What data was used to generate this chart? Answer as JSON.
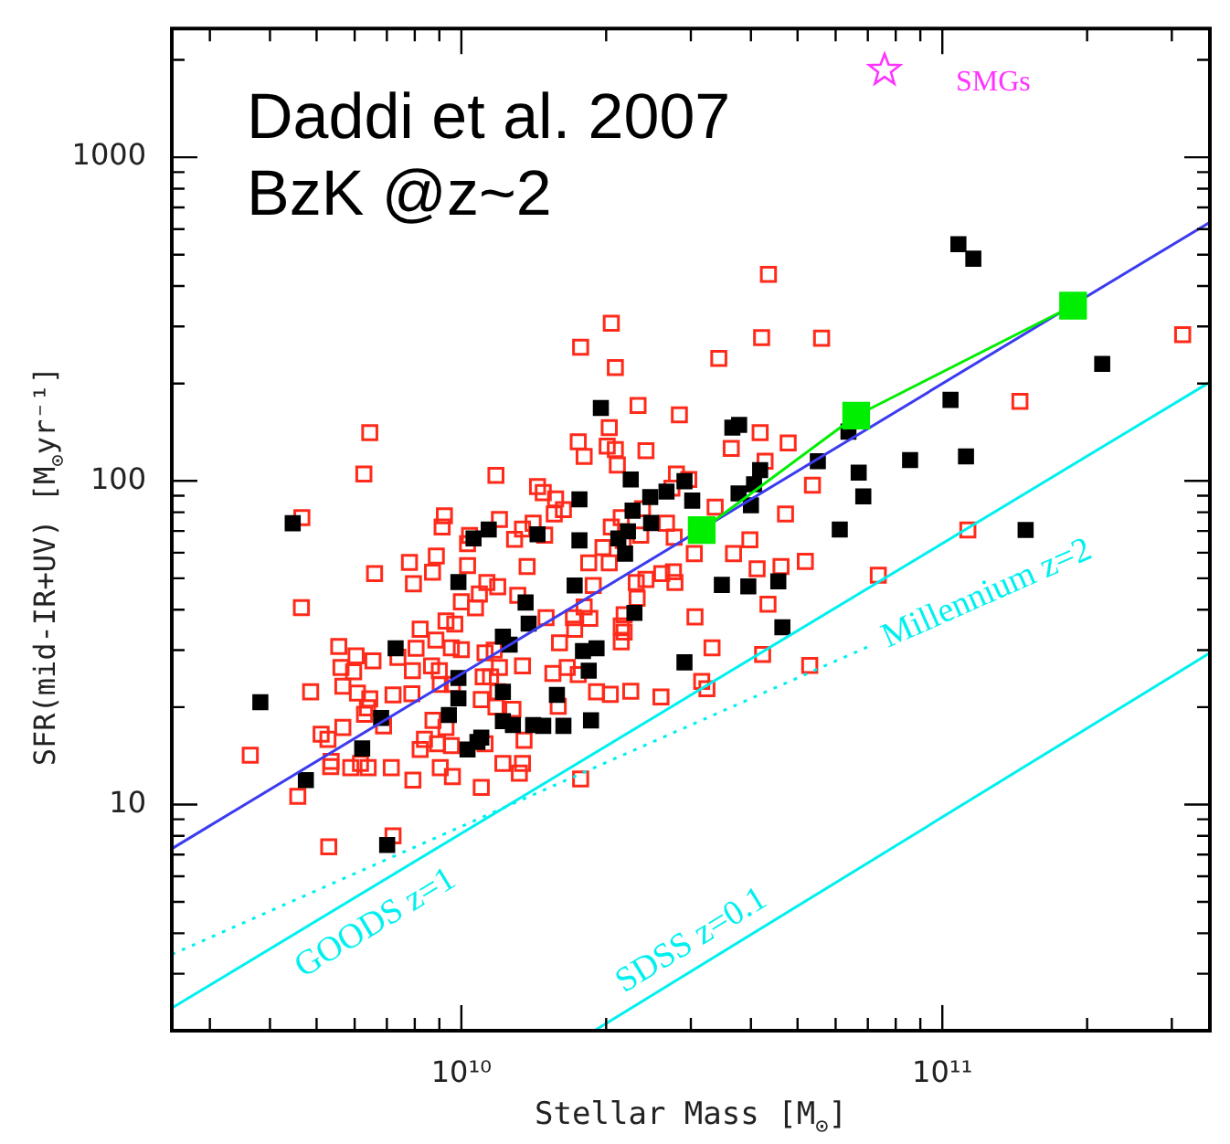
{
  "chart_data": {
    "type": "scatter",
    "xlabel": "Stellar Mass [M$_{⊙}$]",
    "ylabel": "SFR(mid-IR+UV) [M$_{⊙}$yr⁻¹]",
    "annotations": [
      "Daddi et al. 2007",
      "BzK @z~2",
      "SMGs"
    ],
    "log": "xy",
    "xlim": [
      2500000000.0,
      360000000000.0
    ],
    "ylim": [
      2,
      2500
    ],
    "xticks": [
      {
        "value": 3000000000.0,
        "label": null
      },
      {
        "value": 4000000000.0,
        "label": null
      },
      {
        "value": 5000000000.0,
        "label": null
      },
      {
        "value": 6000000000.0,
        "label": null
      },
      {
        "value": 7000000000.0,
        "label": null
      },
      {
        "value": 8000000000.0,
        "label": null
      },
      {
        "value": 9000000000.0,
        "label": null
      },
      {
        "value": 10000000000.0,
        "label": "10¹⁰"
      },
      {
        "value": 20000000000.0,
        "label": null
      },
      {
        "value": 30000000000.0,
        "label": null
      },
      {
        "value": 40000000000.0,
        "label": null
      },
      {
        "value": 50000000000.0,
        "label": null
      },
      {
        "value": 60000000000.0,
        "label": null
      },
      {
        "value": 70000000000.0,
        "label": null
      },
      {
        "value": 80000000000.0,
        "label": null
      },
      {
        "value": 90000000000.0,
        "label": null
      },
      {
        "value": 100000000000.0,
        "label": "10¹¹"
      },
      {
        "value": 200000000000.0,
        "label": null
      },
      {
        "value": 300000000000.0,
        "label": null
      }
    ],
    "yticks": [
      {
        "value": 3,
        "label": null
      },
      {
        "value": 4,
        "label": null
      },
      {
        "value": 5,
        "label": null
      },
      {
        "value": 6,
        "label": null
      },
      {
        "value": 7,
        "label": null
      },
      {
        "value": 8,
        "label": null
      },
      {
        "value": 9,
        "label": null
      },
      10,
      {
        "value": 20,
        "label": null
      },
      {
        "value": 30,
        "label": null
      },
      {
        "value": 40,
        "label": null
      },
      {
        "value": 50,
        "label": null
      },
      {
        "value": 60,
        "label": null
      },
      {
        "value": 70,
        "label": null
      },
      {
        "value": 80,
        "label": null
      },
      {
        "value": 90,
        "label": null
      },
      100,
      {
        "value": 200,
        "label": null
      },
      {
        "value": 300,
        "label": null
      },
      {
        "value": 400,
        "label": null
      },
      {
        "value": 500,
        "label": null
      },
      {
        "value": 600,
        "label": null
      },
      {
        "value": 700,
        "label": null
      },
      {
        "value": 800,
        "label": null
      },
      {
        "value": 900,
        "label": null
      },
      1000,
      {
        "value": 2000,
        "label": null
      }
    ],
    "series": [
      {
        "type": "scatter",
        "marker": "square",
        "color": "#ff2a1a",
        "x": [
          17700000000.0,
          6450000000.0,
          17500000000.0,
          18000000000.0,
          6270000000.0,
          11800000000.0,
          14400000000.0,
          14800000000.0,
          15700000000.0,
          16300000000.0,
          15600000000.0,
          4660000000.0,
          9220000000.0,
          9120000000.0,
          12000000000.0,
          14100000000.0,
          13400000000.0,
          14900000000.0,
          12900000000.0,
          10300000000.0,
          7800000000.0,
          8870000000.0,
          6600000000.0,
          7950000000.0,
          8710000000.0,
          10300000000.0,
          13700000000.0,
          10400000000.0,
          18400000000.0,
          4650000000.0,
          11300000000.0,
          11900000000.0,
          10900000000.0,
          10000000000.0,
          10700000000.0,
          13100000000.0,
          15000000000.0,
          17100000000.0,
          9290000000.0,
          9690000000.0,
          8210000000.0,
          8850000000.0,
          5560000000.0,
          6040000000.0,
          6550000000.0,
          7380000000.0,
          8050000000.0,
          9530000000.0,
          10000000000.0,
          11200000000.0,
          11700000000.0,
          12000000000.0,
          13400000000.0,
          16000000000.0,
          17200000000.0,
          5620000000.0,
          5970000000.0,
          5670000000.0,
          4860000000.0,
          6080000000.0,
          6450000000.0,
          7210000000.0,
          7890000000.0,
          7910000000.0,
          8670000000.0,
          9000000000.0,
          9040000000.0,
          9580000000.0,
          11100000000.0,
          11500000000.0,
          11000000000.0,
          11900000000.0,
          11800000000.0,
          12800000000.0,
          15500000000.0,
          16600000000.0,
          17500000000.0,
          15900000000.0,
          6380000000.0,
          6290000000.0,
          6890000000.0,
          5670000000.0,
          5110000000.0,
          5280000000.0,
          8730000000.0,
          9290000000.0,
          8210000000.0,
          8380000000.0,
          8920000000.0,
          9530000000.0,
          11200000000.0,
          13500000000.0,
          5360000000.0,
          5350000000.0,
          5890000000.0,
          6170000000.0,
          6400000000.0,
          7150000000.0,
          9040000000.0,
          9580000000.0,
          7930000000.0,
          11000000000.0,
          12200000000.0,
          13400000000.0,
          13200000000.0,
          17700000000.0,
          3640000000.0,
          4570000000.0,
          7210000000.0,
          5300000000.0,
          43500000000.0,
          20500000000.0,
          42100000000.0,
          56100000000.0,
          20900000000.0,
          34300000000.0,
          23300000000.0,
          28400000000.0,
          20300000000.0,
          20100000000.0,
          20900000000.0,
          24200000000.0,
          21100000000.0,
          41800000000.0,
          47800000000.0,
          36400000000.0,
          42800000000.0,
          53700000000.0,
          28000000000.0,
          29700000000.0,
          27400000000.0,
          33700000000.0,
          47200000000.0,
          23800000000.0,
          21500000000.0,
          20500000000.0,
          26700000000.0,
          23600000000.0,
          27700000000.0,
          21700000000.0,
          39800000000.0,
          19700000000.0,
          20300000000.0,
          30500000000.0,
          36800000000.0,
          46200000000.0,
          51900000000.0,
          41200000000.0,
          73600000000.0,
          26100000000.0,
          27600000000.0,
          24200000000.0,
          23100000000.0,
          27800000000.0,
          18800000000.0,
          23200000000.0,
          43400000000.0,
          18000000000.0,
          21800000000.0,
          18500000000.0,
          30600000000.0,
          21500000000.0,
          21800000000.0,
          21500000000.0,
          33200000000.0,
          42300000000.0,
          53000000000.0,
          31600000000.0,
          32400000000.0,
          19100000000.0,
          20400000000.0,
          22500000000.0,
          26000000000.0,
          145000000000.0,
          316000000000.0,
          113000000000.0
        ],
        "values": [
          259,
          141,
          132,
          119,
          105,
          104,
          96,
          92,
          88,
          81.5,
          79,
          77,
          78,
          72,
          76,
          74,
          71,
          68,
          66,
          64,
          56,
          58.6,
          51.7,
          48.1,
          52.2,
          54.7,
          54.4,
          67.8,
          55.8,
          40.6,
          48.5,
          47.1,
          44.7,
          42.3,
          40.5,
          44.3,
          37.8,
          37.8,
          36.9,
          36.1,
          34.8,
          32.2,
          30.8,
          28.8,
          27.8,
          28.5,
          30.4,
          30.5,
          30.1,
          29.4,
          30.0,
          26.5,
          26.8,
          31.6,
          34.8,
          26.5,
          25.7,
          23.2,
          22.3,
          22.1,
          21.2,
          21.8,
          22.0,
          25.9,
          26.8,
          25.9,
          23.5,
          23.5,
          24.8,
          24.8,
          21.1,
          22.3,
          20.0,
          19.7,
          25.4,
          26.5,
          25.2,
          20.1,
          19.9,
          19.0,
          17.5,
          17.3,
          16.5,
          15.9,
          18.2,
          17.3,
          14.8,
          15.9,
          15.4,
          15.2,
          15.4,
          15.8,
          13.6,
          13.1,
          13.0,
          13.4,
          13.0,
          13.0,
          13.0,
          12.2,
          11.9,
          11.3,
          13.4,
          13.4,
          12.5,
          12.0,
          14.2,
          10.6,
          8.0,
          7.4,
          435,
          307,
          277,
          276,
          224,
          239,
          171,
          160,
          146,
          128,
          125,
          124,
          112,
          141,
          131,
          126,
          115,
          97,
          105,
          101,
          95,
          83,
          79,
          82,
          77,
          72,
          74,
          68,
          67,
          65.5,
          65.8,
          62.2,
          55.8,
          59.6,
          59.6,
          54.4,
          56.4,
          53.5,
          51.1,
          51.7,
          52.4,
          49.6,
          48.5,
          48.5,
          47.5,
          43.4,
          41.6,
          40.8,
          38.6,
          37.6,
          38.0,
          35.6,
          34.1,
          31.8,
          30.5,
          29.1,
          26.9,
          24.0,
          22.8,
          22.3,
          21.9,
          22.4,
          21.5,
          176,
          283,
          70.5
        ]
      },
      {
        "type": "scatter",
        "marker": "square",
        "color": "#000000",
        "x": [
          4460000000.0,
          17600000000.0,
          11400000000.0,
          10600000000.0,
          14400000000.0,
          17600000000.0,
          3820000000.0,
          7300000000.0,
          9860000000.0,
          13600000000.0,
          13800000000.0,
          12200000000.0,
          12600000000.0,
          17200000000.0,
          17900000000.0,
          18400000000.0,
          9860000000.0,
          9860000000.0,
          12200000000.0,
          15800000000.0,
          6810000000.0,
          9420000000.0,
          12200000000.0,
          12800000000.0,
          14100000000.0,
          14800000000.0,
          16300000000.0,
          18600000000.0,
          11000000000.0,
          10800000000.0,
          10300000000.0,
          6220000000.0,
          4750000000.0,
          7010000000.0,
          19500000000.0,
          36600000000.0,
          37800000000.0,
          63800000000.0,
          22500000000.0,
          29100000000.0,
          26700000000.0,
          24700000000.0,
          30200000000.0,
          37700000000.0,
          40600000000.0,
          41800000000.0,
          55100000000.0,
          67000000000.0,
          68500000000.0,
          40000000000.0,
          22700000000.0,
          24800000000.0,
          21200000000.0,
          21900000000.0,
          22200000000.0,
          61200000000.0,
          34800000000.0,
          39500000000.0,
          45600000000.0,
          22900000000.0,
          46500000000.0,
          19100000000.0,
          29100000000.0,
          108000000000.0,
          116000000000.0,
          215000000000.0,
          104000000000.0,
          112000000000.0,
          149000000000.0,
          85700000000.0
        ],
        "values": [
          74,
          87.7,
          70.8,
          66.4,
          68.4,
          65.5,
          20.7,
          30.4,
          48.7,
          42.1,
          36.2,
          33.0,
          31.2,
          47.5,
          29.8,
          25.9,
          24.6,
          21.3,
          22.3,
          21.8,
          18.5,
          18.9,
          18.1,
          17.6,
          17.6,
          17.5,
          17.5,
          18.2,
          16.1,
          15.6,
          14.8,
          14.9,
          11.9,
          7.5,
          168,
          146,
          149,
          142,
          101,
          99.8,
          92.7,
          89.1,
          86.9,
          91.5,
          97.6,
          108,
          115,
          106,
          89.6,
          84.1,
          80.9,
          74.1,
          66.4,
          59.6,
          69.8,
          70.8,
          47.7,
          47.2,
          48.9,
          39.1,
          35.3,
          30.4,
          27.5,
          539,
          486,
          230,
          178,
          119,
          70.5,
          116
        ]
      },
      {
        "type": "line",
        "marker": "none",
        "line_style": "solid",
        "color": "#3b3bf0",
        "x": [
          2500000000.0,
          360000000000.0
        ],
        "values": [
          7.3,
          630
        ]
      },
      {
        "type": "line",
        "marker": "square",
        "line_style": "solid",
        "color": "#00ee00",
        "x": [
          31600000000.0,
          66200000000.0,
          187000000000.0
        ],
        "values": [
          70.5,
          159,
          348
        ]
      },
      {
        "type": "line",
        "name": "GOODS z=1",
        "marker": "none",
        "line_style": "solid",
        "color": "#00f0f0",
        "x": [
          2500000000.0,
          360000000000.0
        ],
        "values": [
          2.35,
          202
        ]
      },
      {
        "type": "line",
        "name": "Millennium z=2",
        "marker": "none",
        "line_style": "dotted",
        "color": "#00f0f0",
        "x": [
          2500000000.0,
          71000000000.0
        ],
        "values": [
          3.44,
          31
        ]
      },
      {
        "type": "line",
        "name": "SDSS z=0.1",
        "marker": "none",
        "line_style": "solid",
        "color": "#00f0f0",
        "x": [
          18900000000.0,
          360000000000.0
        ],
        "values": [
          2,
          29.4
        ]
      }
    ]
  }
}
